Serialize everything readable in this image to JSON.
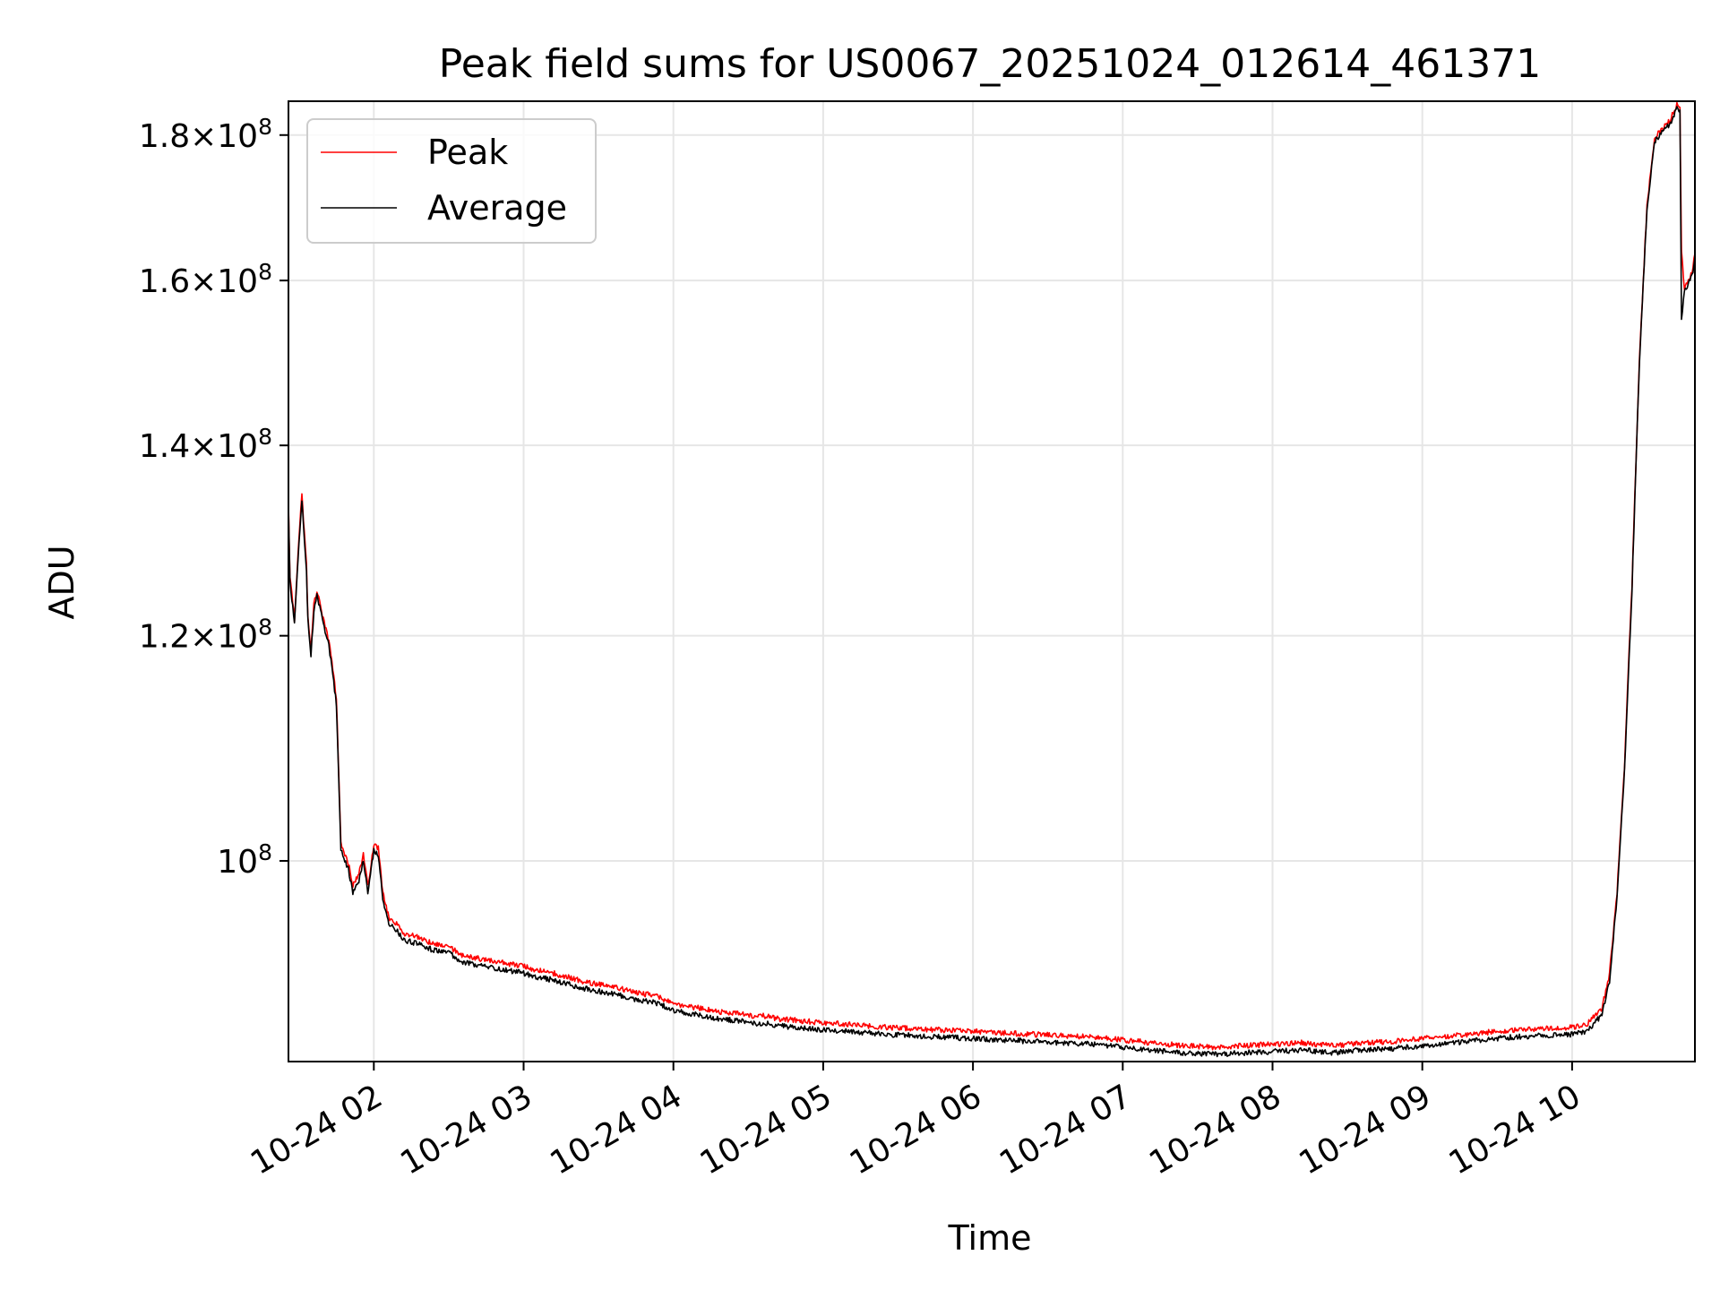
{
  "chart_data": {
    "type": "line",
    "title": "Peak field sums for US0067_20251024_012614_461371",
    "xlabel": "Time",
    "ylabel": "ADU",
    "yscale": "log",
    "xlim": [
      1.43,
      10.82
    ],
    "ylim": [
      85000000,
      185000000
    ],
    "grid": true,
    "legend_position": "upper-left",
    "x_ticks": [
      {
        "value": 2,
        "label": "10-24 02"
      },
      {
        "value": 3,
        "label": "10-24 03"
      },
      {
        "value": 4,
        "label": "10-24 04"
      },
      {
        "value": 5,
        "label": "10-24 05"
      },
      {
        "value": 6,
        "label": "10-24 06"
      },
      {
        "value": 7,
        "label": "10-24 07"
      },
      {
        "value": 8,
        "label": "10-24 08"
      },
      {
        "value": 9,
        "label": "10-24 09"
      },
      {
        "value": 10,
        "label": "10-24 10"
      }
    ],
    "y_ticks": [
      {
        "value": 100000000,
        "label": "10",
        "exp": "8",
        "mant": ""
      },
      {
        "value": 120000000,
        "label": "1.2×10",
        "exp": "8",
        "mant": "1.2"
      },
      {
        "value": 140000000,
        "label": "1.4×10",
        "exp": "8",
        "mant": "1.4"
      },
      {
        "value": 160000000,
        "label": "1.6×10",
        "exp": "8",
        "mant": "1.6"
      },
      {
        "value": 180000000,
        "label": "1.8×10",
        "exp": "8",
        "mant": "1.8"
      }
    ],
    "series": [
      {
        "name": "Peak",
        "color": "#ff0000",
        "x": [
          1.43,
          1.44,
          1.47,
          1.5,
          1.52,
          1.53,
          1.55,
          1.56,
          1.58,
          1.6,
          1.62,
          1.65,
          1.7,
          1.72,
          1.75,
          1.78,
          1.8,
          1.83,
          1.86,
          1.9,
          1.93,
          1.96,
          2.0,
          2.03,
          2.06,
          2.1,
          2.14,
          2.2,
          2.3,
          2.4,
          2.5,
          2.6,
          2.7,
          2.8,
          2.9,
          3.0,
          3.1,
          3.2,
          3.3,
          3.4,
          3.5,
          3.6,
          3.7,
          3.8,
          3.9,
          4.0,
          4.1,
          4.2,
          4.3,
          4.4,
          4.5,
          4.55,
          4.6,
          4.7,
          4.8,
          4.9,
          5.0,
          5.2,
          5.4,
          5.6,
          5.8,
          6.0,
          6.2,
          6.4,
          6.6,
          6.8,
          7.0,
          7.2,
          7.4,
          7.6,
          7.8,
          8.0,
          8.2,
          8.4,
          8.6,
          8.8,
          9.0,
          9.2,
          9.4,
          9.6,
          9.8,
          10.0,
          10.1,
          10.2,
          10.25,
          10.3,
          10.35,
          10.4,
          10.45,
          10.5,
          10.55,
          10.6,
          10.65,
          10.7,
          10.72,
          10.73,
          10.75,
          10.8,
          10.82
        ],
        "y": [
          133500000,
          126000000,
          121500000,
          130000000,
          134500000,
          132000000,
          127000000,
          122000000,
          118500000,
          123000000,
          124500000,
          122500000,
          119500000,
          117500000,
          114000000,
          101500000,
          100800000,
          99800000,
          98000000,
          98900000,
          100600000,
          97900000,
          101300000,
          101000000,
          97500000,
          95500000,
          95200000,
          94300000,
          94000000,
          93500000,
          93300000,
          92600000,
          92400000,
          92200000,
          92000000,
          91800000,
          91500000,
          91300000,
          91000000,
          90700000,
          90500000,
          90300000,
          90000000,
          89800000,
          89600000,
          89100000,
          88900000,
          88700000,
          88500000,
          88400000,
          88300000,
          88100000,
          88200000,
          88000000,
          87900000,
          87800000,
          87700000,
          87600000,
          87400000,
          87300000,
          87200000,
          87100000,
          87000000,
          86900000,
          86800000,
          86700000,
          86500000,
          86300000,
          86100000,
          86000000,
          86100000,
          86200000,
          86300000,
          86100000,
          86300000,
          86400000,
          86600000,
          86800000,
          87000000,
          87200000,
          87300000,
          87400000,
          87600000,
          88800000,
          91200000,
          97500000,
          108000000,
          125000000,
          150000000,
          170000000,
          179500000,
          181000000,
          182000000,
          184500000,
          184000000,
          164000000,
          159000000,
          161000000,
          163500000
        ]
      },
      {
        "name": "Average",
        "color": "#000000",
        "x": [
          1.43,
          1.44,
          1.47,
          1.5,
          1.52,
          1.53,
          1.55,
          1.56,
          1.58,
          1.6,
          1.62,
          1.65,
          1.7,
          1.72,
          1.75,
          1.78,
          1.8,
          1.83,
          1.86,
          1.9,
          1.93,
          1.96,
          2.0,
          2.03,
          2.06,
          2.1,
          2.14,
          2.2,
          2.3,
          2.4,
          2.5,
          2.6,
          2.7,
          2.8,
          2.9,
          3.0,
          3.1,
          3.2,
          3.3,
          3.4,
          3.5,
          3.6,
          3.7,
          3.8,
          3.9,
          4.0,
          4.1,
          4.2,
          4.3,
          4.4,
          4.5,
          4.55,
          4.6,
          4.7,
          4.8,
          4.9,
          5.0,
          5.2,
          5.4,
          5.6,
          5.8,
          6.0,
          6.2,
          6.4,
          6.6,
          6.8,
          7.0,
          7.2,
          7.4,
          7.6,
          7.8,
          8.0,
          8.2,
          8.4,
          8.6,
          8.8,
          9.0,
          9.2,
          9.4,
          9.6,
          9.8,
          10.0,
          10.1,
          10.2,
          10.25,
          10.3,
          10.35,
          10.4,
          10.45,
          10.5,
          10.55,
          10.6,
          10.65,
          10.7,
          10.72,
          10.73,
          10.75,
          10.8,
          10.82
        ],
        "y": [
          133000000,
          125500000,
          121000000,
          129500000,
          134000000,
          131500000,
          126500000,
          121500000,
          118000000,
          122500000,
          124000000,
          122000000,
          119000000,
          117000000,
          113500000,
          101000000,
          100300000,
          99300000,
          97500000,
          98400000,
          100100000,
          97400000,
          100800000,
          100500000,
          97000000,
          95000000,
          94700000,
          93800000,
          93500000,
          93000000,
          92800000,
          92100000,
          91900000,
          91700000,
          91500000,
          91300000,
          91000000,
          90800000,
          90500000,
          90200000,
          90000000,
          89800000,
          89500000,
          89300000,
          89100000,
          88600000,
          88400000,
          88200000,
          88000000,
          87900000,
          87800000,
          87600000,
          87700000,
          87500000,
          87400000,
          87300000,
          87200000,
          87100000,
          86900000,
          86800000,
          86700000,
          86600000,
          86500000,
          86400000,
          86300000,
          86200000,
          86000000,
          85800000,
          85600000,
          85500000,
          85600000,
          85700000,
          85800000,
          85600000,
          85800000,
          85900000,
          86100000,
          86300000,
          86500000,
          86700000,
          86800000,
          86900000,
          87100000,
          88300000,
          90700000,
          97000000,
          107500000,
          124500000,
          149500000,
          169500000,
          179000000,
          180500000,
          181500000,
          184000000,
          183500000,
          155000000,
          158500000,
          160500000,
          163000000
        ]
      }
    ]
  }
}
